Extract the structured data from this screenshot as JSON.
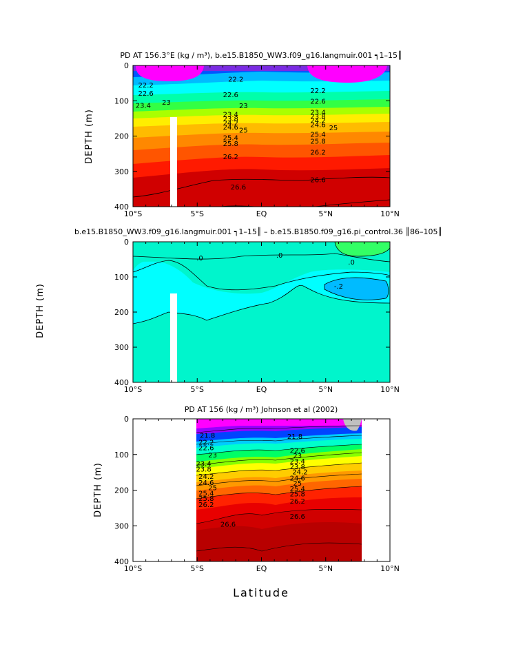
{
  "figure": {
    "xlabel": "Latitude"
  },
  "colors": {
    "magenta": "#ff00ff",
    "violet": "#8a2be2",
    "blue": "#0000ff",
    "cyan": "#00ffff",
    "teal": "#00e0c0",
    "green": "#00ff40",
    "yellow": "#ffff00",
    "orange": "#ff9900",
    "red": "#ff0000",
    "darkred": "#cc0000",
    "land_mask": "#ffffff",
    "missing": "#c0c0c0"
  },
  "chart_data": [
    {
      "type": "heatmap",
      "title": "PD AT 156.3°E (kg / m³), b.e15.B1850_WW3.f09_g16.langmuir.001  ┑1–15║",
      "xlabel": "",
      "ylabel": "DEPTH (m)",
      "x_ticks": [
        "10°S",
        "5°S",
        "EQ",
        "5°N",
        "10°N"
      ],
      "y_ticks": [
        "0",
        "100",
        "200",
        "300",
        "400"
      ],
      "xlim": [
        -10,
        10
      ],
      "ylim": [
        400,
        0
      ],
      "grid": false,
      "colored_bands": [
        "magenta",
        "violet",
        "blue",
        "cyan",
        "green",
        "yellow",
        "orange",
        "red",
        "darkred"
      ],
      "contour_labels": [
        {
          "value": "22.2",
          "lat": -9.0,
          "depth": 55
        },
        {
          "value": "22.6",
          "lat": -9.0,
          "depth": 78
        },
        {
          "value": "23",
          "lat": -7.4,
          "depth": 103
        },
        {
          "value": "23.4",
          "lat": -9.2,
          "depth": 112
        },
        {
          "value": "22.2",
          "lat": -2.0,
          "depth": 38
        },
        {
          "value": "22.6",
          "lat": -2.4,
          "depth": 82
        },
        {
          "value": "23",
          "lat": -1.4,
          "depth": 113
        },
        {
          "value": "23.4",
          "lat": -2.4,
          "depth": 138
        },
        {
          "value": "23.8",
          "lat": -2.4,
          "depth": 150
        },
        {
          "value": "24.2",
          "lat": -2.4,
          "depth": 162
        },
        {
          "value": "24.6",
          "lat": -2.4,
          "depth": 174
        },
        {
          "value": "25",
          "lat": -1.4,
          "depth": 182
        },
        {
          "value": "25.4",
          "lat": -2.4,
          "depth": 204
        },
        {
          "value": "25.8",
          "lat": -2.4,
          "depth": 220
        },
        {
          "value": "26.2",
          "lat": -2.4,
          "depth": 258
        },
        {
          "value": "26.6",
          "lat": -1.8,
          "depth": 343
        },
        {
          "value": "22.2",
          "lat": 4.4,
          "depth": 70
        },
        {
          "value": "22.6",
          "lat": 4.4,
          "depth": 100
        },
        {
          "value": "23.4",
          "lat": 4.4,
          "depth": 132
        },
        {
          "value": "23.8",
          "lat": 4.4,
          "depth": 143
        },
        {
          "value": "24.2",
          "lat": 4.4,
          "depth": 155
        },
        {
          "value": "24.6",
          "lat": 4.4,
          "depth": 167
        },
        {
          "value": "25",
          "lat": 5.6,
          "depth": 176
        },
        {
          "value": "25.4",
          "lat": 4.4,
          "depth": 194
        },
        {
          "value": "25.8",
          "lat": 4.4,
          "depth": 214
        },
        {
          "value": "26.2",
          "lat": 4.4,
          "depth": 245
        },
        {
          "value": "26.6",
          "lat": 4.4,
          "depth": 323
        }
      ],
      "masked_column": {
        "lat": [
          -7.3,
          -6.8
        ],
        "depth": [
          148,
          400
        ]
      }
    },
    {
      "type": "heatmap",
      "title": "b.e15.B1850_WW3.f09_g16.langmuir.001  ┑1–15║ – b.e15.B1850.f09_g16.pi_control.36  ║86–105║",
      "xlabel": "",
      "ylabel": "DEPTH (m)",
      "x_ticks": [
        "10°S",
        "5°S",
        "EQ",
        "5°N",
        "10°N"
      ],
      "y_ticks": [
        "0",
        "100",
        "200",
        "300",
        "400"
      ],
      "xlim": [
        -10,
        10
      ],
      "ylim": [
        400,
        0
      ],
      "grid": false,
      "colored_bands": [
        "teal",
        "cyan",
        "green",
        "blue"
      ],
      "contour_labels": [
        {
          "value": ".0",
          "lat": -4.8,
          "depth": 45
        },
        {
          "value": ".0",
          "lat": 1.4,
          "depth": 37
        },
        {
          "value": ".0",
          "lat": 7.0,
          "depth": 57
        },
        {
          "value": "-.2",
          "lat": 6.0,
          "depth": 125
        }
      ],
      "masked_column": {
        "lat": [
          -7.3,
          -6.8
        ],
        "depth": [
          148,
          400
        ]
      }
    },
    {
      "type": "heatmap",
      "title": "PD AT 156 (kg / m³) Johnson et al (2002)",
      "xlabel": "Latitude",
      "ylabel": "DEPTH (m)",
      "x_ticks": [
        "10°S",
        "5°S",
        "EQ",
        "5°N",
        "10°N"
      ],
      "y_ticks": [
        "0",
        "100",
        "200",
        "300",
        "400"
      ],
      "xlim": [
        -10,
        10
      ],
      "ylim": [
        400,
        0
      ],
      "grid": false,
      "data_extent_lat": [
        -5,
        8
      ],
      "colored_bands": [
        "magenta",
        "violet",
        "blue",
        "cyan",
        "green",
        "yellow",
        "orange",
        "red",
        "darkred"
      ],
      "contour_labels": [
        {
          "value": "21.8",
          "lat": -4.2,
          "depth": 45
        },
        {
          "value": "22.2",
          "lat": -4.3,
          "depth": 65
        },
        {
          "value": "22.6",
          "lat": -4.3,
          "depth": 80
        },
        {
          "value": "23",
          "lat": -3.8,
          "depth": 100
        },
        {
          "value": "23.4",
          "lat": -4.5,
          "depth": 125
        },
        {
          "value": "23.8",
          "lat": -4.5,
          "depth": 140
        },
        {
          "value": "24.2",
          "lat": -4.3,
          "depth": 160
        },
        {
          "value": "24.6",
          "lat": -4.3,
          "depth": 178
        },
        {
          "value": "25",
          "lat": -3.8,
          "depth": 192
        },
        {
          "value": "25.4",
          "lat": -4.3,
          "depth": 208
        },
        {
          "value": "25.8",
          "lat": -4.3,
          "depth": 222
        },
        {
          "value": "26.2",
          "lat": -4.3,
          "depth": 240
        },
        {
          "value": "26.6",
          "lat": -2.6,
          "depth": 295
        },
        {
          "value": "21.8",
          "lat": 2.6,
          "depth": 48
        },
        {
          "value": "22.6",
          "lat": 2.8,
          "depth": 88
        },
        {
          "value": "23",
          "lat": 2.8,
          "depth": 102
        },
        {
          "value": "23.4",
          "lat": 2.8,
          "depth": 118
        },
        {
          "value": "23.8",
          "lat": 2.8,
          "depth": 133
        },
        {
          "value": "24.2",
          "lat": 3.0,
          "depth": 148
        },
        {
          "value": "24.6",
          "lat": 2.8,
          "depth": 165
        },
        {
          "value": "25",
          "lat": 2.8,
          "depth": 180
        },
        {
          "value": "25.4",
          "lat": 2.8,
          "depth": 195
        },
        {
          "value": "25.8",
          "lat": 2.8,
          "depth": 210
        },
        {
          "value": "26.2",
          "lat": 2.8,
          "depth": 230
        },
        {
          "value": "26.6",
          "lat": 2.8,
          "depth": 272
        }
      ]
    }
  ]
}
